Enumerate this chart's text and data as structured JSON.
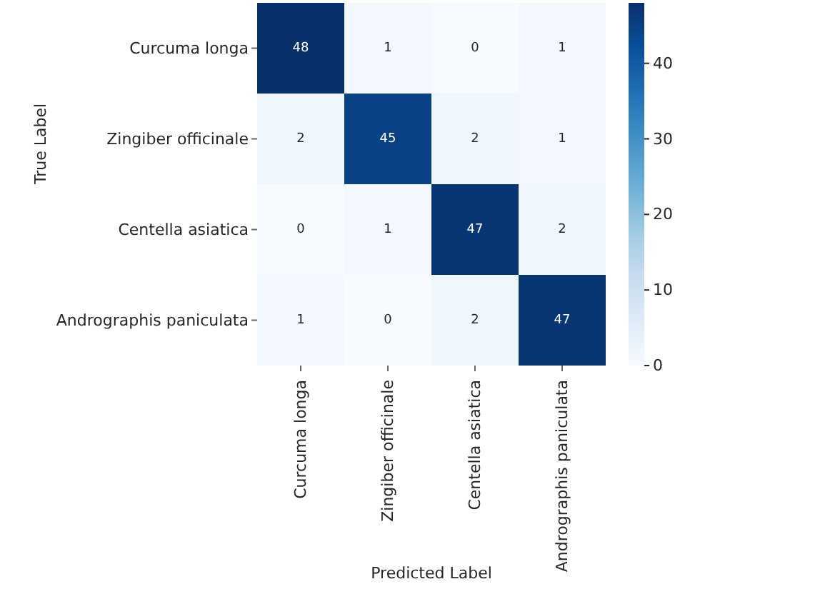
{
  "chart_data": {
    "type": "heatmap",
    "xlabel": "Predicted Label",
    "ylabel": "True Label",
    "categories": [
      "Curcuma longa",
      "Zingiber officinale",
      "Centella asiatica",
      "Andrographis paniculata"
    ],
    "y_categories": [
      "Curcuma longa",
      "Zingiber officinale",
      "Centella asiatica",
      "Andrographis paniculata"
    ],
    "cells": [
      [
        48,
        1,
        0,
        1
      ],
      [
        2,
        45,
        2,
        1
      ],
      [
        0,
        1,
        47,
        2
      ],
      [
        1,
        0,
        2,
        47
      ]
    ],
    "clim": [
      0,
      48
    ],
    "cticks": [
      0,
      10,
      20,
      30,
      40
    ],
    "data_labels": true
  }
}
